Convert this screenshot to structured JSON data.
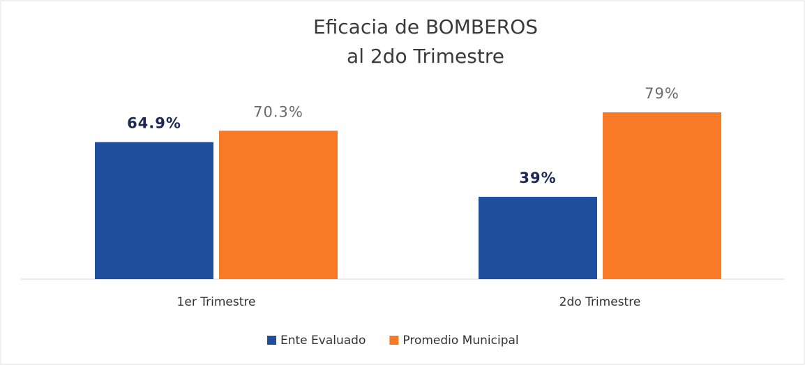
{
  "chart_data": {
    "type": "bar",
    "title": [
      "Eficacia  de BOMBEROS",
      "al 2do Trimestre"
    ],
    "categories": [
      "1er Trimestre",
      "2do Trimestre"
    ],
    "series": [
      {
        "name": "Ente Evaluado",
        "color": "#1f4e9e",
        "values": [
          64.9,
          39
        ],
        "value_labels": [
          "64.9%",
          "39%"
        ]
      },
      {
        "name": "Promedio Municipal",
        "color": "#f97a26",
        "values": [
          70.3,
          79
        ],
        "value_labels": [
          "70.3%",
          "79%"
        ]
      }
    ],
    "legend": "bottom"
  }
}
